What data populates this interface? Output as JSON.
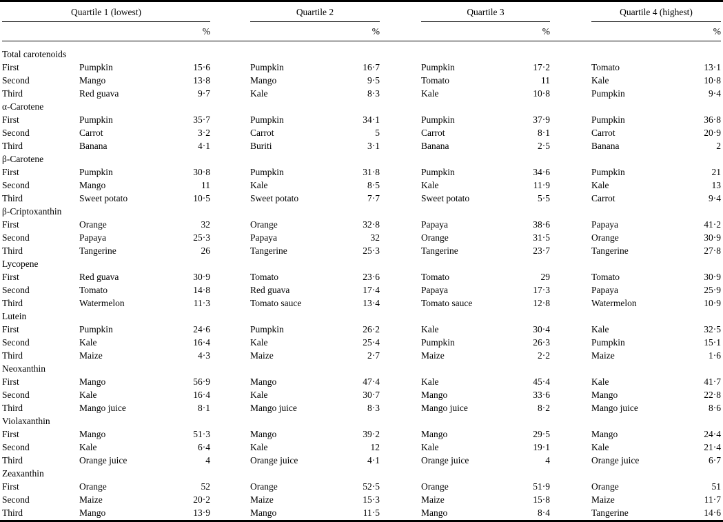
{
  "table": {
    "quartile_headers": [
      "Quartile 1 (lowest)",
      "Quartile 2",
      "Quartile 3",
      "Quartile 4 (highest)"
    ],
    "percent_label": "%",
    "rank_labels": [
      "First",
      "Second",
      "Third"
    ],
    "sections": [
      {
        "name": "Total carotenoids",
        "rows": [
          {
            "rank": "First",
            "entries": [
              {
                "food": "Pumpkin",
                "pct": "15·6"
              },
              {
                "food": "Pumpkin",
                "pct": "16·7"
              },
              {
                "food": "Pumpkin",
                "pct": "17·2"
              },
              {
                "food": "Tomato",
                "pct": "13·1"
              }
            ]
          },
          {
            "rank": "Second",
            "entries": [
              {
                "food": "Mango",
                "pct": "13·8"
              },
              {
                "food": "Mango",
                "pct": "9·5"
              },
              {
                "food": "Tomato",
                "pct": "11"
              },
              {
                "food": "Kale",
                "pct": "10·8"
              }
            ]
          },
          {
            "rank": "Third",
            "entries": [
              {
                "food": "Red guava",
                "pct": "9·7"
              },
              {
                "food": "Kale",
                "pct": "8·3"
              },
              {
                "food": "Kale",
                "pct": "10·8"
              },
              {
                "food": "Pumpkin",
                "pct": "9·4"
              }
            ]
          }
        ]
      },
      {
        "name": "α-Carotene",
        "rows": [
          {
            "rank": "First",
            "entries": [
              {
                "food": "Pumpkin",
                "pct": "35·7"
              },
              {
                "food": "Pumpkin",
                "pct": "34·1"
              },
              {
                "food": "Pumpkin",
                "pct": "37·9"
              },
              {
                "food": "Pumpkin",
                "pct": "36·8"
              }
            ]
          },
          {
            "rank": "Second",
            "entries": [
              {
                "food": "Carrot",
                "pct": "3·2"
              },
              {
                "food": "Carrot",
                "pct": "5"
              },
              {
                "food": "Carrot",
                "pct": "8·1"
              },
              {
                "food": "Carrot",
                "pct": "20·9"
              }
            ]
          },
          {
            "rank": "Third",
            "entries": [
              {
                "food": "Banana",
                "pct": "4·1"
              },
              {
                "food": "Buriti",
                "pct": "3·1"
              },
              {
                "food": "Banana",
                "pct": "2·5"
              },
              {
                "food": "Banana",
                "pct": "2"
              }
            ]
          }
        ]
      },
      {
        "name": "β-Carotene",
        "rows": [
          {
            "rank": "First",
            "entries": [
              {
                "food": "Pumpkin",
                "pct": "30·8"
              },
              {
                "food": "Pumpkin",
                "pct": "31·8"
              },
              {
                "food": "Pumpkin",
                "pct": "34·6"
              },
              {
                "food": "Pumpkin",
                "pct": "21"
              }
            ]
          },
          {
            "rank": "Second",
            "entries": [
              {
                "food": "Mango",
                "pct": "11"
              },
              {
                "food": "Kale",
                "pct": "8·5"
              },
              {
                "food": "Kale",
                "pct": "11·9"
              },
              {
                "food": "Kale",
                "pct": "13"
              }
            ]
          },
          {
            "rank": "Third",
            "entries": [
              {
                "food": "Sweet potato",
                "pct": "10·5"
              },
              {
                "food": "Sweet potato",
                "pct": "7·7"
              },
              {
                "food": "Sweet potato",
                "pct": "5·5"
              },
              {
                "food": "Carrot",
                "pct": "9·4"
              }
            ]
          }
        ]
      },
      {
        "name": "β-Criptoxanthin",
        "rows": [
          {
            "rank": "First",
            "entries": [
              {
                "food": "Orange",
                "pct": "32"
              },
              {
                "food": "Orange",
                "pct": "32·8"
              },
              {
                "food": "Papaya",
                "pct": "38·6"
              },
              {
                "food": "Papaya",
                "pct": "41·2"
              }
            ]
          },
          {
            "rank": "Second",
            "entries": [
              {
                "food": "Papaya",
                "pct": "25·3"
              },
              {
                "food": "Papaya",
                "pct": "32"
              },
              {
                "food": "Orange",
                "pct": "31·5"
              },
              {
                "food": "Orange",
                "pct": "30·9"
              }
            ]
          },
          {
            "rank": "Third",
            "entries": [
              {
                "food": "Tangerine",
                "pct": "26"
              },
              {
                "food": "Tangerine",
                "pct": "25·3"
              },
              {
                "food": "Tangerine",
                "pct": "23·7"
              },
              {
                "food": "Tangerine",
                "pct": "27·8"
              }
            ]
          }
        ]
      },
      {
        "name": "Lycopene",
        "rows": [
          {
            "rank": "First",
            "entries": [
              {
                "food": "Red guava",
                "pct": "30·9"
              },
              {
                "food": "Tomato",
                "pct": "23·6"
              },
              {
                "food": "Tomato",
                "pct": "29"
              },
              {
                "food": "Tomato",
                "pct": "30·9"
              }
            ]
          },
          {
            "rank": "Second",
            "entries": [
              {
                "food": "Tomato",
                "pct": "14·8"
              },
              {
                "food": "Red guava",
                "pct": "17·4"
              },
              {
                "food": "Papaya",
                "pct": "17·3"
              },
              {
                "food": "Papaya",
                "pct": "25·9"
              }
            ]
          },
          {
            "rank": "Third",
            "entries": [
              {
                "food": "Watermelon",
                "pct": "11·3"
              },
              {
                "food": "Tomato sauce",
                "pct": "13·4"
              },
              {
                "food": "Tomato sauce",
                "pct": "12·8"
              },
              {
                "food": "Watermelon",
                "pct": "10·9"
              }
            ]
          }
        ]
      },
      {
        "name": "Lutein",
        "rows": [
          {
            "rank": "First",
            "entries": [
              {
                "food": "Pumpkin",
                "pct": "24·6"
              },
              {
                "food": "Pumpkin",
                "pct": "26·2"
              },
              {
                "food": "Kale",
                "pct": "30·4"
              },
              {
                "food": "Kale",
                "pct": "32·5"
              }
            ]
          },
          {
            "rank": "Second",
            "entries": [
              {
                "food": "Kale",
                "pct": "16·4"
              },
              {
                "food": "Kale",
                "pct": "25·4"
              },
              {
                "food": "Pumpkin",
                "pct": "26·3"
              },
              {
                "food": "Pumpkin",
                "pct": "15·1"
              }
            ]
          },
          {
            "rank": "Third",
            "entries": [
              {
                "food": "Maize",
                "pct": "4·3"
              },
              {
                "food": "Maize",
                "pct": "2·7"
              },
              {
                "food": "Maize",
                "pct": "2·2"
              },
              {
                "food": "Maize",
                "pct": "1·6"
              }
            ]
          }
        ]
      },
      {
        "name": "Neoxanthin",
        "rows": [
          {
            "rank": "First",
            "entries": [
              {
                "food": "Mango",
                "pct": "56·9"
              },
              {
                "food": "Mango",
                "pct": "47·4"
              },
              {
                "food": "Kale",
                "pct": "45·4"
              },
              {
                "food": "Kale",
                "pct": "41·7"
              }
            ]
          },
          {
            "rank": "Second",
            "entries": [
              {
                "food": "Kale",
                "pct": "16·4"
              },
              {
                "food": "Kale",
                "pct": "30·7"
              },
              {
                "food": "Mango",
                "pct": "33·6"
              },
              {
                "food": "Mango",
                "pct": "22·8"
              }
            ]
          },
          {
            "rank": "Third",
            "entries": [
              {
                "food": "Mango juice",
                "pct": "8·1"
              },
              {
                "food": "Mango juice",
                "pct": "8·3"
              },
              {
                "food": "Mango juice",
                "pct": "8·2"
              },
              {
                "food": "Mango juice",
                "pct": "8·6"
              }
            ]
          }
        ]
      },
      {
        "name": "Violaxanthin",
        "rows": [
          {
            "rank": "First",
            "entries": [
              {
                "food": "Mango",
                "pct": "51·3"
              },
              {
                "food": "Mango",
                "pct": "39·2"
              },
              {
                "food": "Mango",
                "pct": "29·5"
              },
              {
                "food": "Mango",
                "pct": "24·4"
              }
            ]
          },
          {
            "rank": "Second",
            "entries": [
              {
                "food": "Kale",
                "pct": "6·4"
              },
              {
                "food": "Kale",
                "pct": "12"
              },
              {
                "food": "Kale",
                "pct": "19·1"
              },
              {
                "food": "Kale",
                "pct": "21·4"
              }
            ]
          },
          {
            "rank": "Third",
            "entries": [
              {
                "food": "Orange juice",
                "pct": "4"
              },
              {
                "food": "Orange juice",
                "pct": "4·1"
              },
              {
                "food": "Orange juice",
                "pct": "4"
              },
              {
                "food": "Orange juice",
                "pct": "6·7"
              }
            ]
          }
        ]
      },
      {
        "name": "Zeaxanthin",
        "rows": [
          {
            "rank": "First",
            "entries": [
              {
                "food": "Orange",
                "pct": "52"
              },
              {
                "food": "Orange",
                "pct": "52·5"
              },
              {
                "food": "Orange",
                "pct": "51·9"
              },
              {
                "food": "Orange",
                "pct": "51"
              }
            ]
          },
          {
            "rank": "Second",
            "entries": [
              {
                "food": "Maize",
                "pct": "20·2"
              },
              {
                "food": "Maize",
                "pct": "15·3"
              },
              {
                "food": "Maize",
                "pct": "15·8"
              },
              {
                "food": "Maize",
                "pct": "11·7"
              }
            ]
          },
          {
            "rank": "Third",
            "entries": [
              {
                "food": "Mango",
                "pct": "13·9"
              },
              {
                "food": "Mango",
                "pct": "11·5"
              },
              {
                "food": "Mango",
                "pct": "8·4"
              },
              {
                "food": "Tangerine",
                "pct": "14·6"
              }
            ]
          }
        ]
      }
    ]
  }
}
